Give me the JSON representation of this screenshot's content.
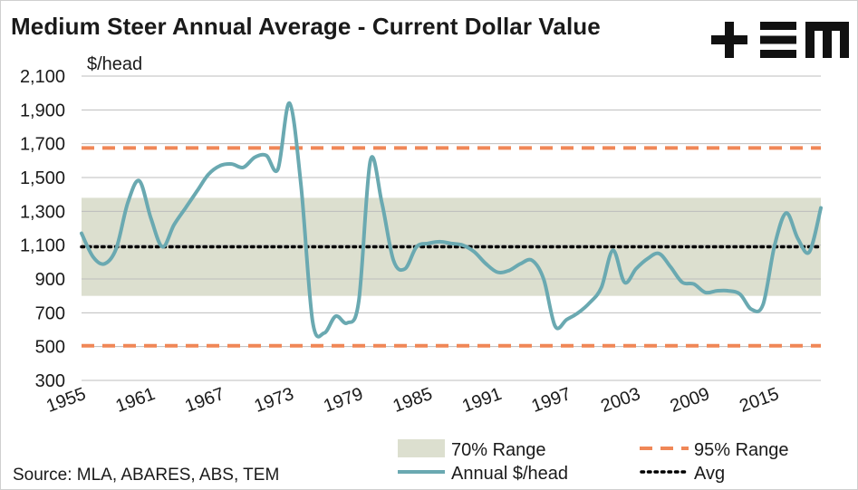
{
  "title": "Medium Steer Annual Average - Current Dollar Value",
  "logo_text": "+ΞM",
  "source": "Source: MLA, ABARES, ABS, TEM",
  "colors": {
    "band": "#dcdfcf",
    "line": "#6aa9b1",
    "range95": "#f08757",
    "avg": "#000000",
    "grid": "#bdbdbd"
  },
  "chart_data": {
    "type": "line",
    "ylabel": "$/head",
    "ylim": [
      300,
      2100
    ],
    "yticks": [
      300,
      500,
      700,
      900,
      1100,
      1300,
      1500,
      1700,
      1900,
      2100
    ],
    "ytick_labels": [
      "300",
      "500",
      "700",
      "900",
      "1,100",
      "1,300",
      "1,500",
      "1,700",
      "1,900",
      "2,100"
    ],
    "xlim": [
      1955,
      2019
    ],
    "xticks": [
      1955,
      1961,
      1967,
      1973,
      1979,
      1985,
      1991,
      1997,
      2003,
      2009,
      2015
    ],
    "xtick_labels": [
      "1955",
      "1961",
      "1967",
      "1973",
      "1979",
      "1985",
      "1991",
      "1997",
      "2003",
      "2009",
      "2015"
    ],
    "series": [
      {
        "name": "Annual $/head",
        "x": [
          1955,
          1956,
          1957,
          1958,
          1959,
          1960,
          1961,
          1962,
          1963,
          1964,
          1965,
          1966,
          1967,
          1968,
          1969,
          1970,
          1971,
          1972,
          1973,
          1974,
          1975,
          1976,
          1977,
          1978,
          1979,
          1980,
          1981,
          1982,
          1983,
          1984,
          1985,
          1986,
          1987,
          1988,
          1989,
          1990,
          1991,
          1992,
          1993,
          1994,
          1995,
          1996,
          1997,
          1998,
          1999,
          2000,
          2001,
          2002,
          2003,
          2004,
          2005,
          2006,
          2007,
          2008,
          2009,
          2010,
          2011,
          2012,
          2013,
          2014,
          2015,
          2016,
          2017,
          2018,
          2019
        ],
        "y": [
          1170,
          1030,
          990,
          1080,
          1350,
          1480,
          1260,
          1090,
          1220,
          1320,
          1420,
          1520,
          1570,
          1580,
          1560,
          1620,
          1630,
          1550,
          1940,
          1450,
          650,
          580,
          680,
          640,
          770,
          1600,
          1350,
          1010,
          960,
          1090,
          1110,
          1120,
          1110,
          1100,
          1060,
          990,
          940,
          950,
          990,
          1010,
          900,
          620,
          660,
          700,
          760,
          850,
          1070,
          880,
          960,
          1020,
          1050,
          970,
          880,
          870,
          820,
          830,
          830,
          810,
          720,
          750,
          1100,
          1290,
          1140,
          1060,
          1320
        ]
      }
    ],
    "band_70": {
      "name": "70% Range",
      "low": 800,
      "high": 1380
    },
    "range_95": {
      "name": "95% Range",
      "low": 505,
      "high": 1675
    },
    "avg": {
      "name": "Avg",
      "value": 1090
    },
    "legend_placement": "bottom",
    "grid": "horizontal"
  }
}
